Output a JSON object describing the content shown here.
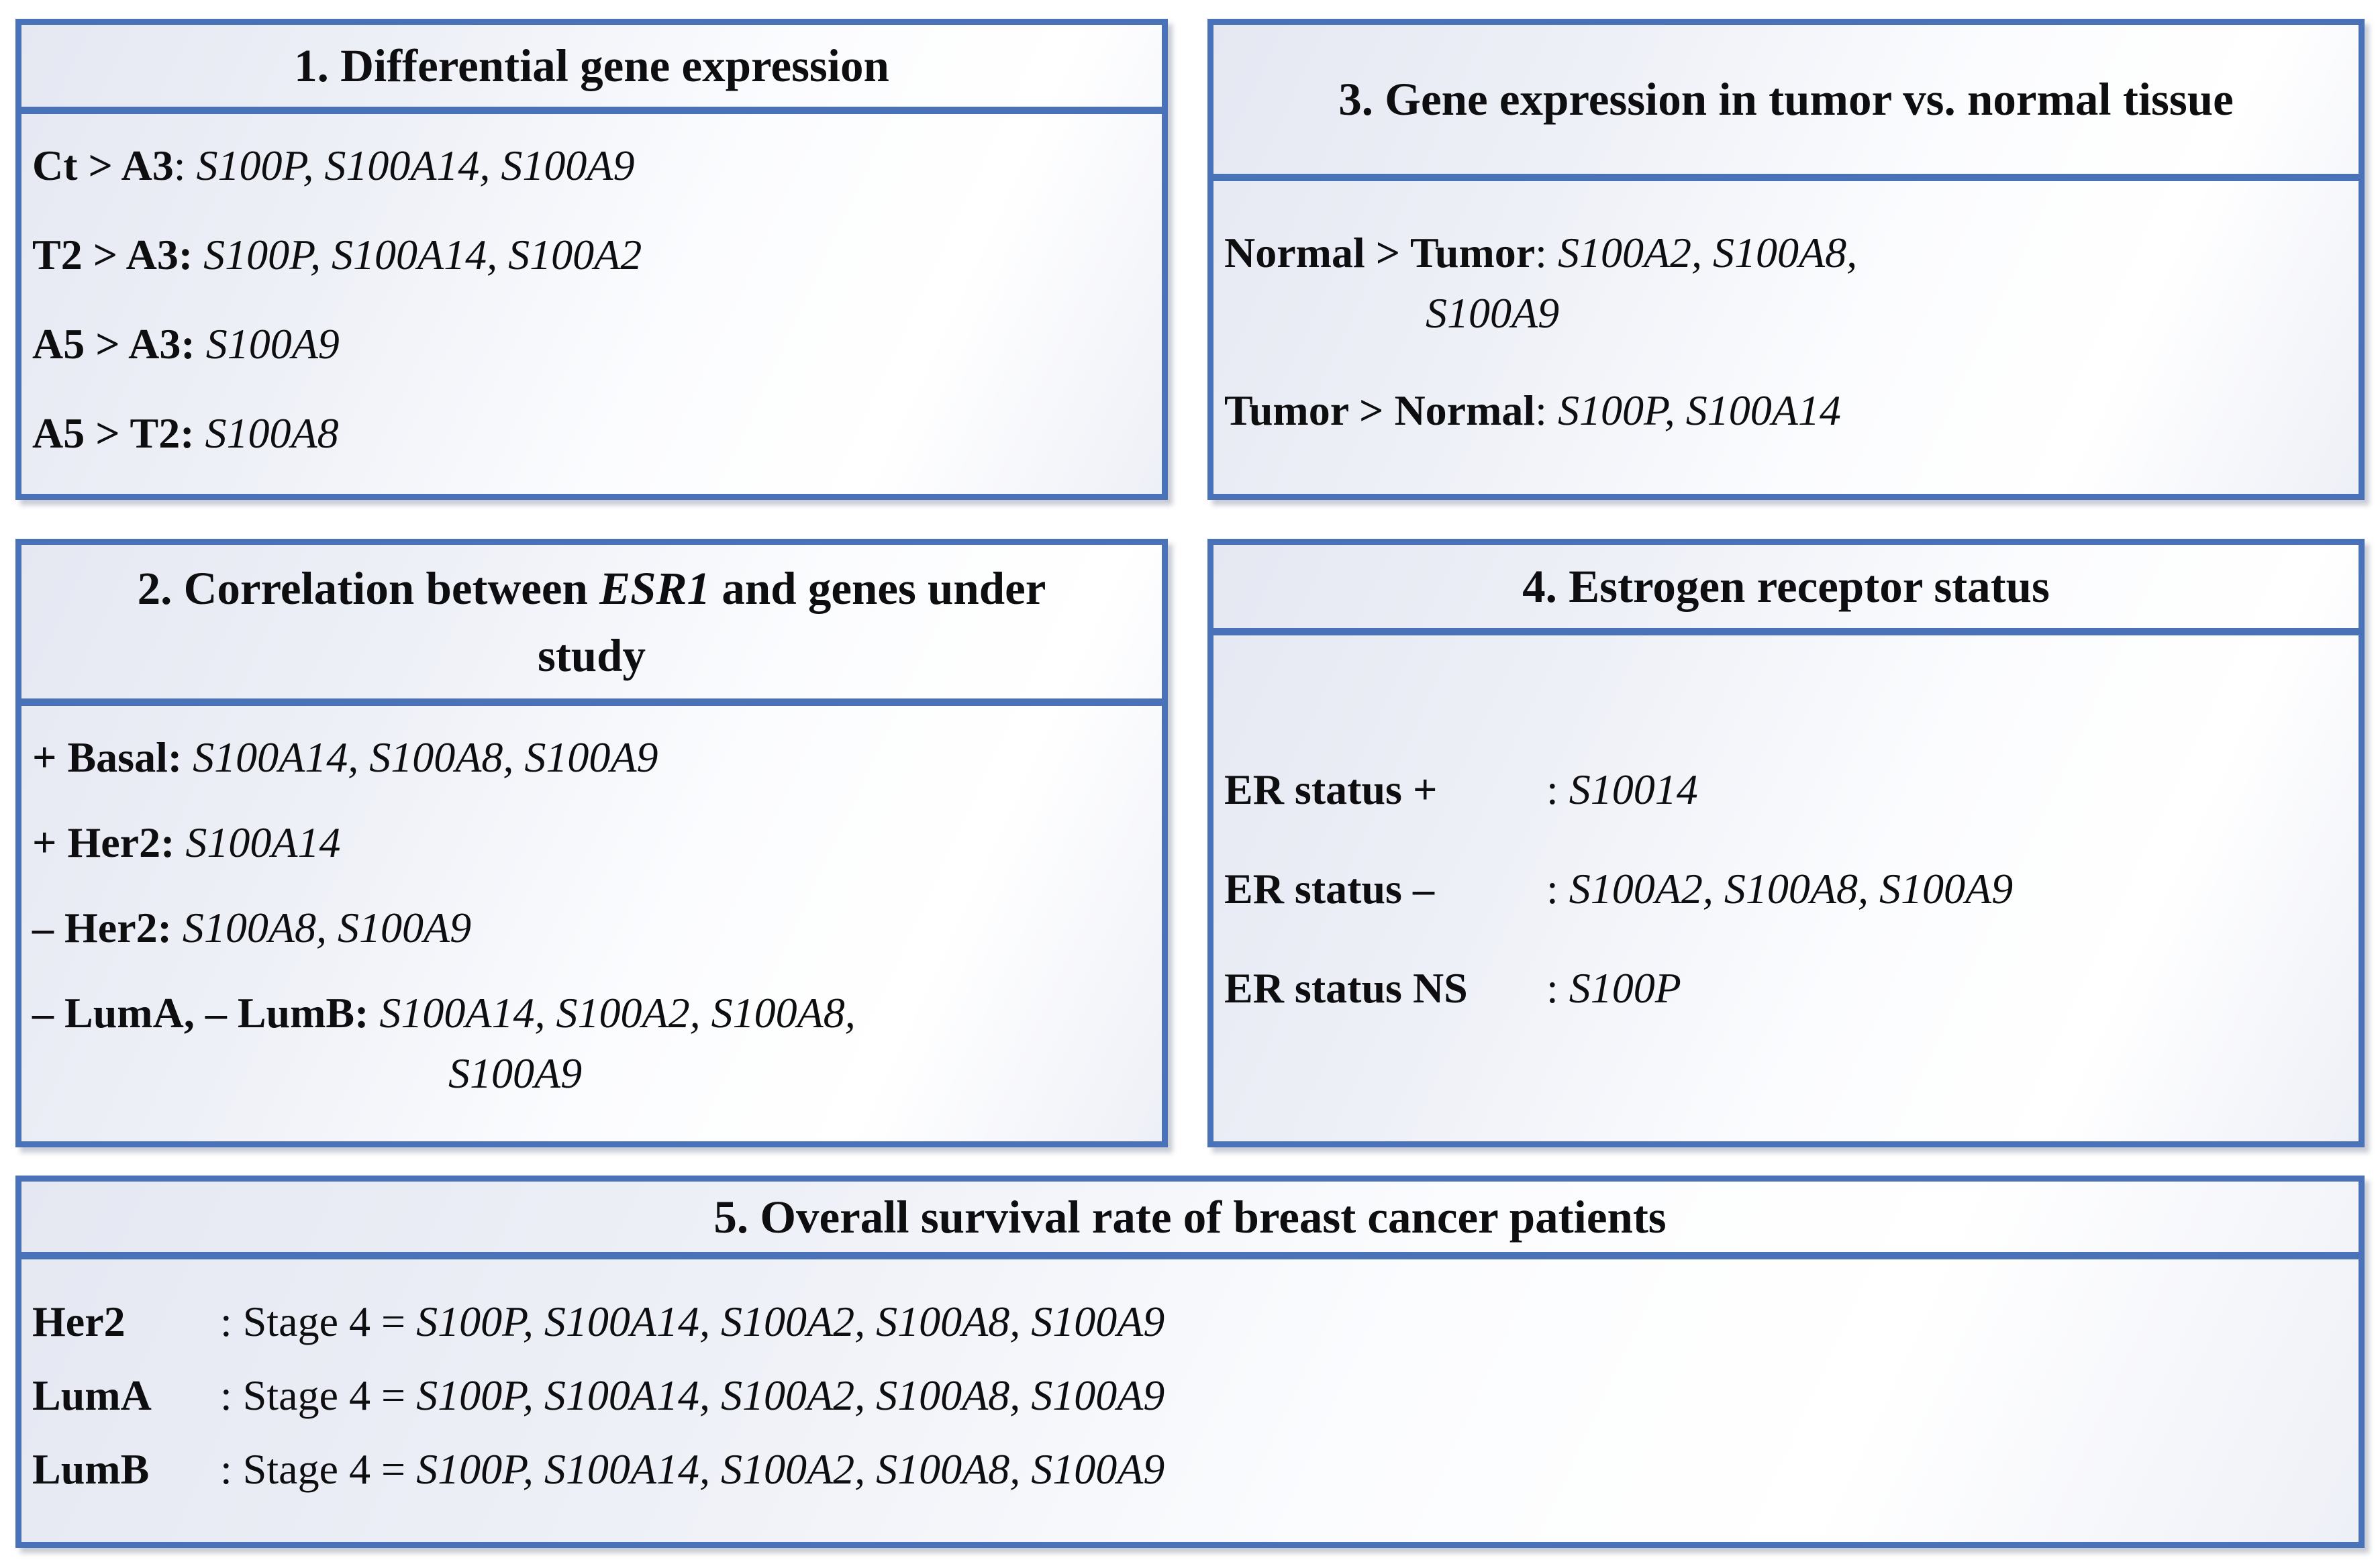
{
  "colors": {
    "border_blue": "#4a72b8",
    "text": "#0e0e10"
  },
  "panels": {
    "differential_gene_expression": {
      "title": {
        "pre": "1. Differential gene expression",
        "em": "",
        "post": ""
      },
      "rows": [
        {
          "label": "Ct > A3",
          "sep": ": ",
          "genes": "S100P, S100A14, S100A9",
          "wrap": ""
        },
        {
          "label": "T2 > A3:",
          "sep": " ",
          "genes": "S100P, S100A14, S100A2",
          "wrap": ""
        },
        {
          "label": "A5 > A3:",
          "sep": " ",
          "genes": "S100A9",
          "wrap": ""
        },
        {
          "label": "A5 > T2:",
          "sep": " ",
          "genes": "S100A8",
          "wrap": ""
        }
      ]
    },
    "esr1_correlation": {
      "title": {
        "pre": "2. Correlation between ",
        "em": "ESR1",
        "post": " and genes under study"
      },
      "rows": [
        {
          "label": "+ Basal:",
          "sep": " ",
          "genes": "S100A14, S100A8, S100A9",
          "wrap": ""
        },
        {
          "label": "+ Her2:",
          "sep": " ",
          "genes": "S100A14",
          "wrap": ""
        },
        {
          "label": "– Her2:",
          "sep": " ",
          "genes": "S100A8, S100A9",
          "wrap": ""
        },
        {
          "label": "– LumA, – LumB:",
          "sep": " ",
          "genes": "S100A14, S100A2, S100A8,",
          "wrap": "S100A9"
        }
      ]
    },
    "tumor_vs_normal": {
      "title": {
        "pre": "3. Gene expression in tumor vs. normal tissue",
        "em": "",
        "post": ""
      },
      "rows": [
        {
          "label": "Normal > Tumor",
          "sep": ": ",
          "genes": "S100A2, S100A8,",
          "wrap": "S100A9"
        },
        {
          "label": "Tumor > Normal",
          "sep": ": ",
          "genes": "S100P, S100A14",
          "wrap": ""
        }
      ]
    },
    "er_status": {
      "title": {
        "pre": "4. Estrogen receptor status",
        "em": "",
        "post": ""
      },
      "rows": [
        {
          "label": "ER status +",
          "sep": ": ",
          "genes": "S10014",
          "wrap": ""
        },
        {
          "label": "ER status –",
          "sep": ": ",
          "genes": "S100A2, S100A8, S100A9",
          "wrap": ""
        },
        {
          "label": "ER status NS",
          "sep": ": ",
          "genes": "S100P",
          "wrap": ""
        }
      ]
    },
    "overall_survival": {
      "title": {
        "pre": "5. Overall survival rate of breast cancer patients",
        "em": "",
        "post": ""
      },
      "rows": [
        {
          "label": "Her2",
          "sep": ": Stage 4 = ",
          "genes": "S100P, S100A14, S100A2, S100A8, S100A9",
          "wrap": ""
        },
        {
          "label": "LumA",
          "sep": ": Stage 4 = ",
          "genes": "S100P, S100A14, S100A2, S100A8, S100A9",
          "wrap": ""
        },
        {
          "label": "LumB",
          "sep": ": Stage 4 = ",
          "genes": "S100P, S100A14, S100A2, S100A8, S100A9",
          "wrap": ""
        }
      ]
    }
  }
}
